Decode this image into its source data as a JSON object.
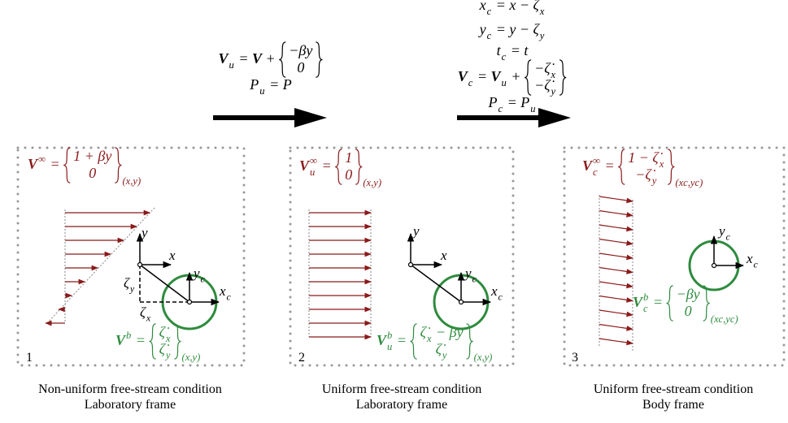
{
  "transforms": [
    {
      "lines": [
        [
          {
            "t": "V",
            "bold": true,
            "sub": "u"
          },
          {
            "t": " = "
          },
          {
            "t": "V",
            "bold": true
          },
          {
            "t": " + "
          },
          {
            "vec": [
              [
                {
                  "t": "−βy"
                }
              ],
              [
                {
                  "t": "0"
                }
              ]
            ]
          }
        ],
        [
          {
            "t": "P",
            "sub": "u"
          },
          {
            "t": " = "
          },
          {
            "t": "P"
          }
        ]
      ]
    },
    {
      "lines": [
        [
          {
            "t": "x",
            "sub": "c"
          },
          {
            "t": " = x − "
          },
          {
            "t": "ζ",
            "sub": "x"
          }
        ],
        [
          {
            "t": "y",
            "sub": "c"
          },
          {
            "t": " = y − "
          },
          {
            "t": "ζ",
            "sub": "y"
          }
        ],
        [
          {
            "t": "t",
            "sub": "c"
          },
          {
            "t": " = t"
          }
        ],
        [
          {
            "t": "V",
            "bold": true,
            "sub": "c"
          },
          {
            "t": " = "
          },
          {
            "t": "V",
            "bold": true,
            "sub": "u"
          },
          {
            "t": " + "
          },
          {
            "vec": [
              [
                {
                  "t": "−ζ̇",
                  "sub": "x"
                }
              ],
              [
                {
                  "t": "−ζ̇",
                  "sub": "y"
                }
              ]
            ]
          }
        ],
        [
          {
            "t": "P",
            "sub": "c"
          },
          {
            "t": " = "
          },
          {
            "t": "P",
            "sub": "u"
          }
        ]
      ]
    }
  ],
  "panels": [
    {
      "number": "1",
      "freestream": [
        {
          "t": "V",
          "bold": true,
          "sup": "∞"
        },
        {
          "t": " = "
        },
        {
          "vec": [
            [
              {
                "t": "1 + βy"
              }
            ],
            [
              {
                "t": "0"
              }
            ]
          ],
          "sub": "(x,y)"
        }
      ],
      "body": [
        {
          "t": "V",
          "bold": true,
          "sup": "b"
        },
        {
          "t": " = "
        },
        {
          "vec": [
            [
              {
                "t": "ζ̇",
                "sub": "x"
              }
            ],
            [
              {
                "t": "ζ̇",
                "sub": "y"
              }
            ]
          ],
          "sub": "(x,y)"
        }
      ],
      "labels": [
        [
          {
            "t": "y"
          }
        ],
        [
          {
            "t": "x"
          }
        ],
        [
          {
            "t": "y",
            "sub": "c"
          }
        ],
        [
          {
            "t": "x",
            "sub": "c"
          }
        ],
        [
          {
            "t": "ζ",
            "sub": "y"
          }
        ],
        [
          {
            "t": "ζ",
            "sub": "x"
          }
        ]
      ],
      "caption": [
        "Non-uniform free-stream condition",
        "Laboratory frame"
      ]
    },
    {
      "number": "2",
      "freestream": [
        {
          "t": "V",
          "bold": true,
          "sup": "∞",
          "sub": "u"
        },
        {
          "t": " = "
        },
        {
          "vec": [
            [
              {
                "t": "1"
              }
            ],
            [
              {
                "t": "0"
              }
            ]
          ],
          "sub": "(x,y)"
        }
      ],
      "body": [
        {
          "t": "V",
          "bold": true,
          "sup": "b",
          "sub": "u"
        },
        {
          "t": " = "
        },
        {
          "vec": [
            [
              {
                "t": "ζ̇",
                "sub": "x"
              },
              {
                "t": " − βy"
              }
            ],
            [
              {
                "t": "ζ̇",
                "sub": "y"
              }
            ]
          ],
          "sub": "(x,y)"
        }
      ],
      "labels": [
        [
          {
            "t": "y"
          }
        ],
        [
          {
            "t": "x"
          }
        ],
        [
          {
            "t": "y",
            "sub": "c"
          }
        ],
        [
          {
            "t": "x",
            "sub": "c"
          }
        ]
      ],
      "caption": [
        "Uniform free-stream condition",
        "Laboratory frame"
      ]
    },
    {
      "number": "3",
      "freestream": [
        {
          "t": "V",
          "bold": true,
          "sup": "∞",
          "sub": "c"
        },
        {
          "t": " = "
        },
        {
          "vec": [
            [
              {
                "t": "1 − ζ̇",
                "sub": "x"
              }
            ],
            [
              {
                "t": "−ζ̇",
                "sub": "y"
              }
            ]
          ],
          "sub": "(xc,yc)"
        }
      ],
      "body": [
        {
          "t": "V",
          "bold": true,
          "sup": "b",
          "sub": "c"
        },
        {
          "t": " = "
        },
        {
          "vec": [
            [
              {
                "t": "−βy"
              }
            ],
            [
              {
                "t": "0"
              }
            ]
          ],
          "sub": "(xc,yc)"
        }
      ],
      "labels": [
        [
          {
            "t": "y",
            "sub": "c"
          }
        ],
        [
          {
            "t": "x",
            "sub": "c"
          }
        ]
      ],
      "caption": [
        "Uniform free-stream condition",
        "Body frame"
      ]
    }
  ]
}
